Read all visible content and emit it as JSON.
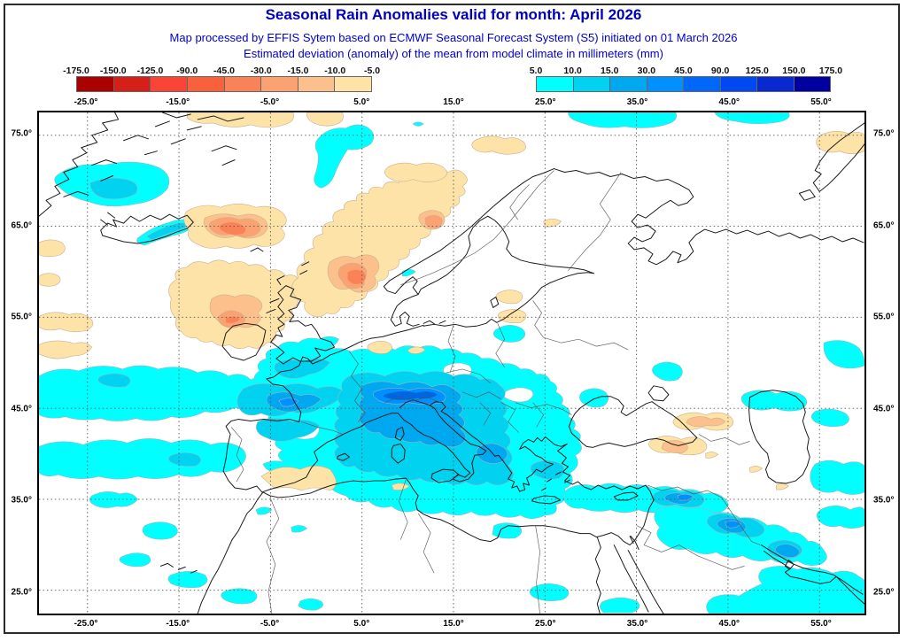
{
  "header": {
    "title": "Seasonal Rain Anomalies valid for month: April 2026",
    "subtitle_line1": "Map processed by EFFIS Sytem based on ECMWF Seasonal Forecast System (S5) initiated on 01 March 2026",
    "subtitle_line2": "Estimated deviation (anomaly) of the mean from model climate in millimeters (mm)",
    "title_color": "#0000bb",
    "subtitle_color": "#0000cd"
  },
  "legend": {
    "negative": {
      "labels": [
        "-175.0",
        "-150.0",
        "-125.0",
        "-90.0",
        "-45.0",
        "-30.0",
        "-15.0",
        "-10.0",
        "-5.0"
      ],
      "colors": [
        "#aa0000",
        "#d42019",
        "#f94436",
        "#f9613c",
        "#fa8258",
        "#fba273",
        "#fcc08c",
        "#fde3a7"
      ]
    },
    "positive": {
      "labels": [
        "5.0",
        "10.0",
        "15.0",
        "30.0",
        "45.0",
        "90.0",
        "125.0",
        "150.0",
        "175.0"
      ],
      "colors": [
        "#00ffff",
        "#00d2f0",
        "#00a8f0",
        "#0090ff",
        "#0068f8",
        "#0048f0",
        "#0828d0",
        "#0000a0"
      ]
    }
  },
  "map": {
    "x_ticks": [
      "-25.0°",
      "-15.0°",
      "-5.0°",
      "5.0°",
      "15.0°",
      "25.0°",
      "35.0°",
      "45.0°",
      "55.0°"
    ],
    "y_ticks": [
      "75.0°",
      "65.0°",
      "55.0°",
      "45.0°",
      "35.0°",
      "25.0°"
    ]
  }
}
